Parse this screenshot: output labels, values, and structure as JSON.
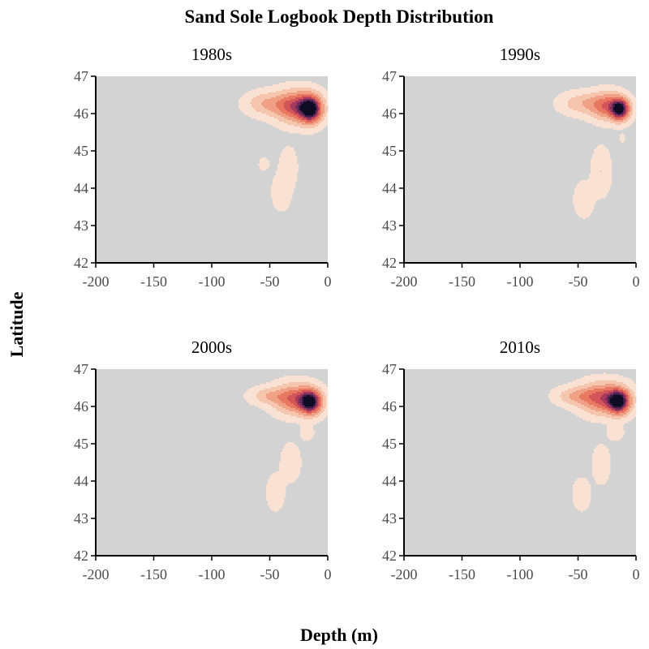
{
  "chart_data": {
    "type": "heatmap",
    "subtype": "2d-density-contour",
    "title": "Sand Sole Logbook Depth Distribution",
    "xlabel": "Depth (m)",
    "ylabel": "Latitude",
    "xlim": [
      -200,
      0
    ],
    "ylim": [
      42,
      47
    ],
    "x_ticks": [
      -200,
      -150,
      -100,
      -50,
      0
    ],
    "y_ticks": [
      42,
      43,
      44,
      45,
      46,
      47
    ],
    "panel_background": "#d3d3d3",
    "grid": false,
    "legend": "none",
    "color_scale": [
      "#f9e2d3",
      "#f5c5ae",
      "#f0a085",
      "#e8785f",
      "#d35459",
      "#a53a5d",
      "#6d2b5b",
      "#3a1c47",
      "#0e0c22"
    ],
    "panels": [
      {
        "title": "1980s",
        "blobs": [
          {
            "x": -15,
            "y": 46.12,
            "sx": 6,
            "sy": 0.22,
            "w": 1.0
          },
          {
            "x": -26,
            "y": 46.18,
            "sx": 11,
            "sy": 0.26,
            "w": 0.55
          },
          {
            "x": -45,
            "y": 46.25,
            "sx": 14,
            "sy": 0.2,
            "w": 0.2
          },
          {
            "x": -58,
            "y": 46.3,
            "sx": 7,
            "sy": 0.17,
            "w": 0.06
          },
          {
            "x": -55,
            "y": 44.65,
            "sx": 3.2,
            "sy": 0.12,
            "w": 0.04
          },
          {
            "x": -34,
            "y": 44.55,
            "sx": 4.5,
            "sy": 0.32,
            "w": 0.08
          },
          {
            "x": -40,
            "y": 43.9,
            "sx": 5,
            "sy": 0.3,
            "w": 0.07
          }
        ]
      },
      {
        "title": "1990s",
        "blobs": [
          {
            "x": -14,
            "y": 46.12,
            "sx": 5,
            "sy": 0.18,
            "w": 1.0
          },
          {
            "x": -25,
            "y": 46.2,
            "sx": 9,
            "sy": 0.22,
            "w": 0.45
          },
          {
            "x": -45,
            "y": 46.27,
            "sx": 12,
            "sy": 0.18,
            "w": 0.18
          },
          {
            "x": -12,
            "y": 45.35,
            "sx": 1.8,
            "sy": 0.1,
            "w": 0.03
          },
          {
            "x": -30,
            "y": 44.45,
            "sx": 5,
            "sy": 0.38,
            "w": 0.09
          },
          {
            "x": -45,
            "y": 43.7,
            "sx": 5,
            "sy": 0.28,
            "w": 0.08
          }
        ]
      },
      {
        "title": "2000s",
        "blobs": [
          {
            "x": -15,
            "y": 46.12,
            "sx": 6,
            "sy": 0.2,
            "w": 1.0
          },
          {
            "x": -28,
            "y": 46.2,
            "sx": 11,
            "sy": 0.24,
            "w": 0.5
          },
          {
            "x": -50,
            "y": 46.28,
            "sx": 10,
            "sy": 0.14,
            "w": 0.18
          },
          {
            "x": -18,
            "y": 45.3,
            "sx": 4,
            "sy": 0.13,
            "w": 0.05
          },
          {
            "x": -32,
            "y": 44.5,
            "sx": 5,
            "sy": 0.3,
            "w": 0.08
          },
          {
            "x": -45,
            "y": 43.7,
            "sx": 4.5,
            "sy": 0.28,
            "w": 0.08
          }
        ]
      },
      {
        "title": "2010s",
        "blobs": [
          {
            "x": -15,
            "y": 46.13,
            "sx": 6,
            "sy": 0.2,
            "w": 1.0
          },
          {
            "x": -28,
            "y": 46.22,
            "sx": 12,
            "sy": 0.25,
            "w": 0.55
          },
          {
            "x": -50,
            "y": 46.28,
            "sx": 11,
            "sy": 0.15,
            "w": 0.22
          },
          {
            "x": -18,
            "y": 45.3,
            "sx": 4.5,
            "sy": 0.13,
            "w": 0.06
          },
          {
            "x": -30,
            "y": 44.45,
            "sx": 4.5,
            "sy": 0.3,
            "w": 0.08
          },
          {
            "x": -47,
            "y": 43.65,
            "sx": 4.5,
            "sy": 0.25,
            "w": 0.08
          }
        ]
      }
    ]
  }
}
